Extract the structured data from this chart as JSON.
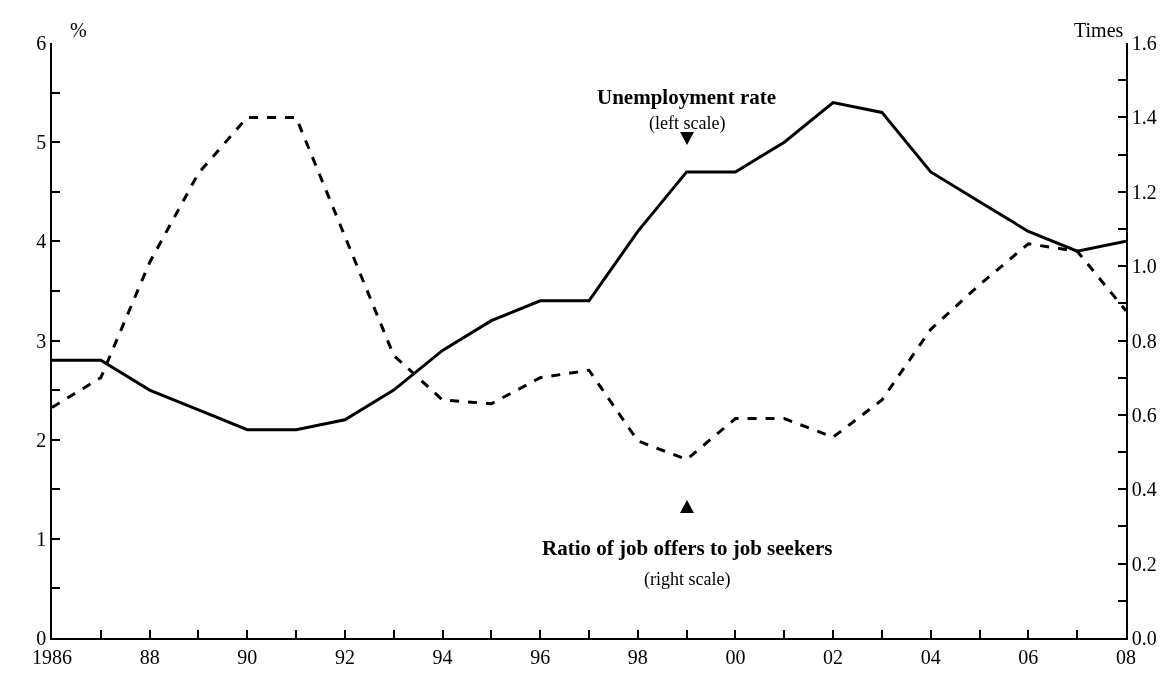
{
  "chart_data": {
    "type": "line",
    "ylabel": "%",
    "y2label": "Times",
    "x": [
      1986,
      1987,
      1988,
      1989,
      1990,
      1991,
      1992,
      1993,
      1994,
      1995,
      1996,
      1997,
      1998,
      1999,
      2000,
      2001,
      2002,
      2003,
      2004,
      2005,
      2006,
      2007,
      2008
    ],
    "series": [
      {
        "color": "#000000",
        "line_style": "solid",
        "values": [
          2.8,
          2.8,
          2.5,
          2.3,
          2.1,
          2.1,
          2.2,
          2.5,
          2.9,
          3.2,
          3.4,
          3.4,
          4.1,
          4.7,
          4.7,
          5.0,
          5.4,
          5.3,
          4.7,
          4.4,
          4.1,
          3.9,
          4.0
        ]
      },
      {
        "color": "#000000",
        "line_style": "dashed",
        "axis": "y2",
        "values": [
          0.62,
          0.7,
          1.01,
          1.25,
          1.4,
          1.4,
          1.08,
          0.76,
          0.64,
          0.63,
          0.7,
          0.72,
          0.53,
          0.48,
          0.59,
          0.59,
          0.54,
          0.64,
          0.83,
          0.95,
          1.06,
          1.04,
          0.88
        ]
      }
    ],
    "annotations": [
      "Unemployment rate",
      "(left scale)",
      "Ratio of job offers to job seekers",
      "(right scale)"
    ],
    "xlim": [
      1986,
      2008
    ],
    "xticks": [
      1986,
      {
        "value": 1987,
        "label": null
      },
      {
        "value": 1988,
        "label": "88"
      },
      {
        "value": 1989,
        "label": null
      },
      {
        "value": 1990,
        "label": "90"
      },
      {
        "value": 1991,
        "label": null
      },
      {
        "value": 1992,
        "label": "92"
      },
      {
        "value": 1993,
        "label": null
      },
      {
        "value": 1994,
        "label": "94"
      },
      {
        "value": 1995,
        "label": null
      },
      {
        "value": 1996,
        "label": "96"
      },
      {
        "value": 1997,
        "label": null
      },
      {
        "value": 1998,
        "label": "98"
      },
      {
        "value": 1999,
        "label": null
      },
      {
        "value": 2000,
        "label": "00"
      },
      {
        "value": 2001,
        "label": null
      },
      {
        "value": 2002,
        "label": "02"
      },
      {
        "value": 2003,
        "label": null
      },
      {
        "value": 2004,
        "label": "04"
      },
      {
        "value": 2005,
        "label": null
      },
      {
        "value": 2006,
        "label": "06"
      },
      {
        "value": 2007,
        "label": null
      },
      {
        "value": 2008,
        "label": "08"
      }
    ],
    "ylim": [
      0,
      6
    ],
    "yticks": [
      0,
      {
        "value": 0.5,
        "label": null
      },
      1,
      {
        "value": 1.5,
        "label": null
      },
      2,
      {
        "value": 2.5,
        "label": null
      },
      3,
      {
        "value": 3.5,
        "label": null
      },
      4,
      {
        "value": 4.5,
        "label": null
      },
      5,
      {
        "value": 5.5,
        "label": null
      },
      6
    ],
    "y2lim": [
      0,
      1.6
    ],
    "y2ticks": [
      {
        "value": 0,
        "label": "0.0"
      },
      {
        "value": 0.1,
        "label": null
      },
      0.2,
      {
        "value": 0.3,
        "label": null
      },
      0.4,
      {
        "value": 0.5,
        "label": null
      },
      0.6,
      {
        "value": 0.7,
        "label": null
      },
      0.8,
      {
        "value": 0.9,
        "label": null
      },
      {
        "value": 1.0,
        "label": "1.0"
      },
      {
        "value": 1.1,
        "label": null
      },
      1.2,
      {
        "value": 1.3,
        "label": null
      },
      1.4,
      {
        "value": 1.5,
        "label": null
      },
      1.6
    ],
    "grid": false,
    "marker": "none"
  }
}
